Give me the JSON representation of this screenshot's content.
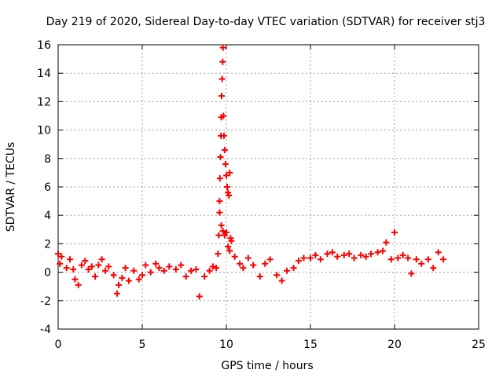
{
  "chart_data": {
    "type": "scatter",
    "title": "Day 219 of 2020, Sidereal Day-to-day VTEC variation (SDTVAR) for receiver stj3",
    "xlabel": "GPS time / hours",
    "ylabel": "SDTVAR / TECUs",
    "xlim": [
      0,
      25
    ],
    "ylim": [
      -4,
      16
    ],
    "grid": true,
    "marker": "+",
    "colors": {
      "series": "#ff0000",
      "grid": "#a0a0a0",
      "axis": "#000000"
    },
    "x_ticks": [
      "0",
      "5",
      "10",
      "15",
      "20",
      "25"
    ],
    "y_ticks": [
      "-4",
      "-2",
      "0",
      "2",
      "4",
      "6",
      "8",
      "10",
      "12",
      "14",
      "16"
    ],
    "series": [
      {
        "name": "SDTVAR",
        "x": [
          0.0,
          0.1,
          0.2,
          0.5,
          0.7,
          0.9,
          1.0,
          1.2,
          1.4,
          1.6,
          1.8,
          2.0,
          2.2,
          2.4,
          2.6,
          2.8,
          3.0,
          3.3,
          3.5,
          3.6,
          3.8,
          4.0,
          4.2,
          4.5,
          4.8,
          5.0,
          5.2,
          5.5,
          5.8,
          6.0,
          6.3,
          6.6,
          7.0,
          7.3,
          7.6,
          7.9,
          8.2,
          8.4,
          8.7,
          9.0,
          9.2,
          9.4,
          9.5,
          9.55,
          9.6,
          9.6,
          9.62,
          9.65,
          9.68,
          9.7,
          9.72,
          9.75,
          9.78,
          9.8,
          9.83,
          9.86,
          9.9,
          9.95,
          10.0,
          10.05,
          10.1,
          10.15,
          10.2,
          9.7,
          9.8,
          9.9,
          10.0,
          10.1,
          10.2,
          10.25,
          10.3,
          10.5,
          10.8,
          11.0,
          11.3,
          11.6,
          12.0,
          12.3,
          12.6,
          13.0,
          13.3,
          13.6,
          14.0,
          14.3,
          14.6,
          15.0,
          15.3,
          15.6,
          16.0,
          16.3,
          16.6,
          17.0,
          17.3,
          17.6,
          18.0,
          18.3,
          18.6,
          19.0,
          19.3,
          19.5,
          19.8,
          20.0,
          20.2,
          20.5,
          20.8,
          21.0,
          21.3,
          21.6,
          22.0,
          22.3,
          22.6,
          22.9
        ],
        "y": [
          1.3,
          0.6,
          1.1,
          0.3,
          0.9,
          0.2,
          -0.5,
          -0.9,
          0.5,
          0.8,
          0.2,
          0.4,
          -0.3,
          0.5,
          0.9,
          0.1,
          0.4,
          -0.2,
          -1.5,
          -0.9,
          -0.4,
          0.3,
          -0.6,
          0.1,
          -0.5,
          -0.2,
          0.5,
          0.0,
          0.6,
          0.3,
          0.1,
          0.4,
          0.2,
          0.5,
          -0.3,
          0.1,
          0.2,
          -1.7,
          -0.3,
          0.1,
          0.4,
          0.3,
          1.3,
          2.6,
          4.2,
          5.0,
          6.6,
          8.1,
          9.6,
          10.9,
          12.4,
          13.6,
          14.8,
          15.8,
          11.0,
          9.6,
          8.6,
          7.6,
          6.8,
          6.0,
          5.6,
          5.4,
          7.0,
          3.3,
          2.9,
          2.6,
          2.8,
          1.8,
          1.5,
          2.4,
          2.2,
          1.1,
          0.6,
          0.3,
          1.0,
          0.5,
          -0.3,
          0.6,
          0.9,
          -0.2,
          -0.6,
          0.1,
          0.3,
          0.8,
          1.0,
          1.0,
          1.2,
          0.9,
          1.3,
          1.4,
          1.1,
          1.2,
          1.3,
          1.0,
          1.2,
          1.1,
          1.3,
          1.4,
          1.5,
          2.1,
          0.9,
          2.8,
          1.0,
          1.2,
          1.0,
          -0.1,
          0.9,
          0.6,
          0.9,
          0.3,
          1.4,
          0.9
        ]
      }
    ]
  }
}
